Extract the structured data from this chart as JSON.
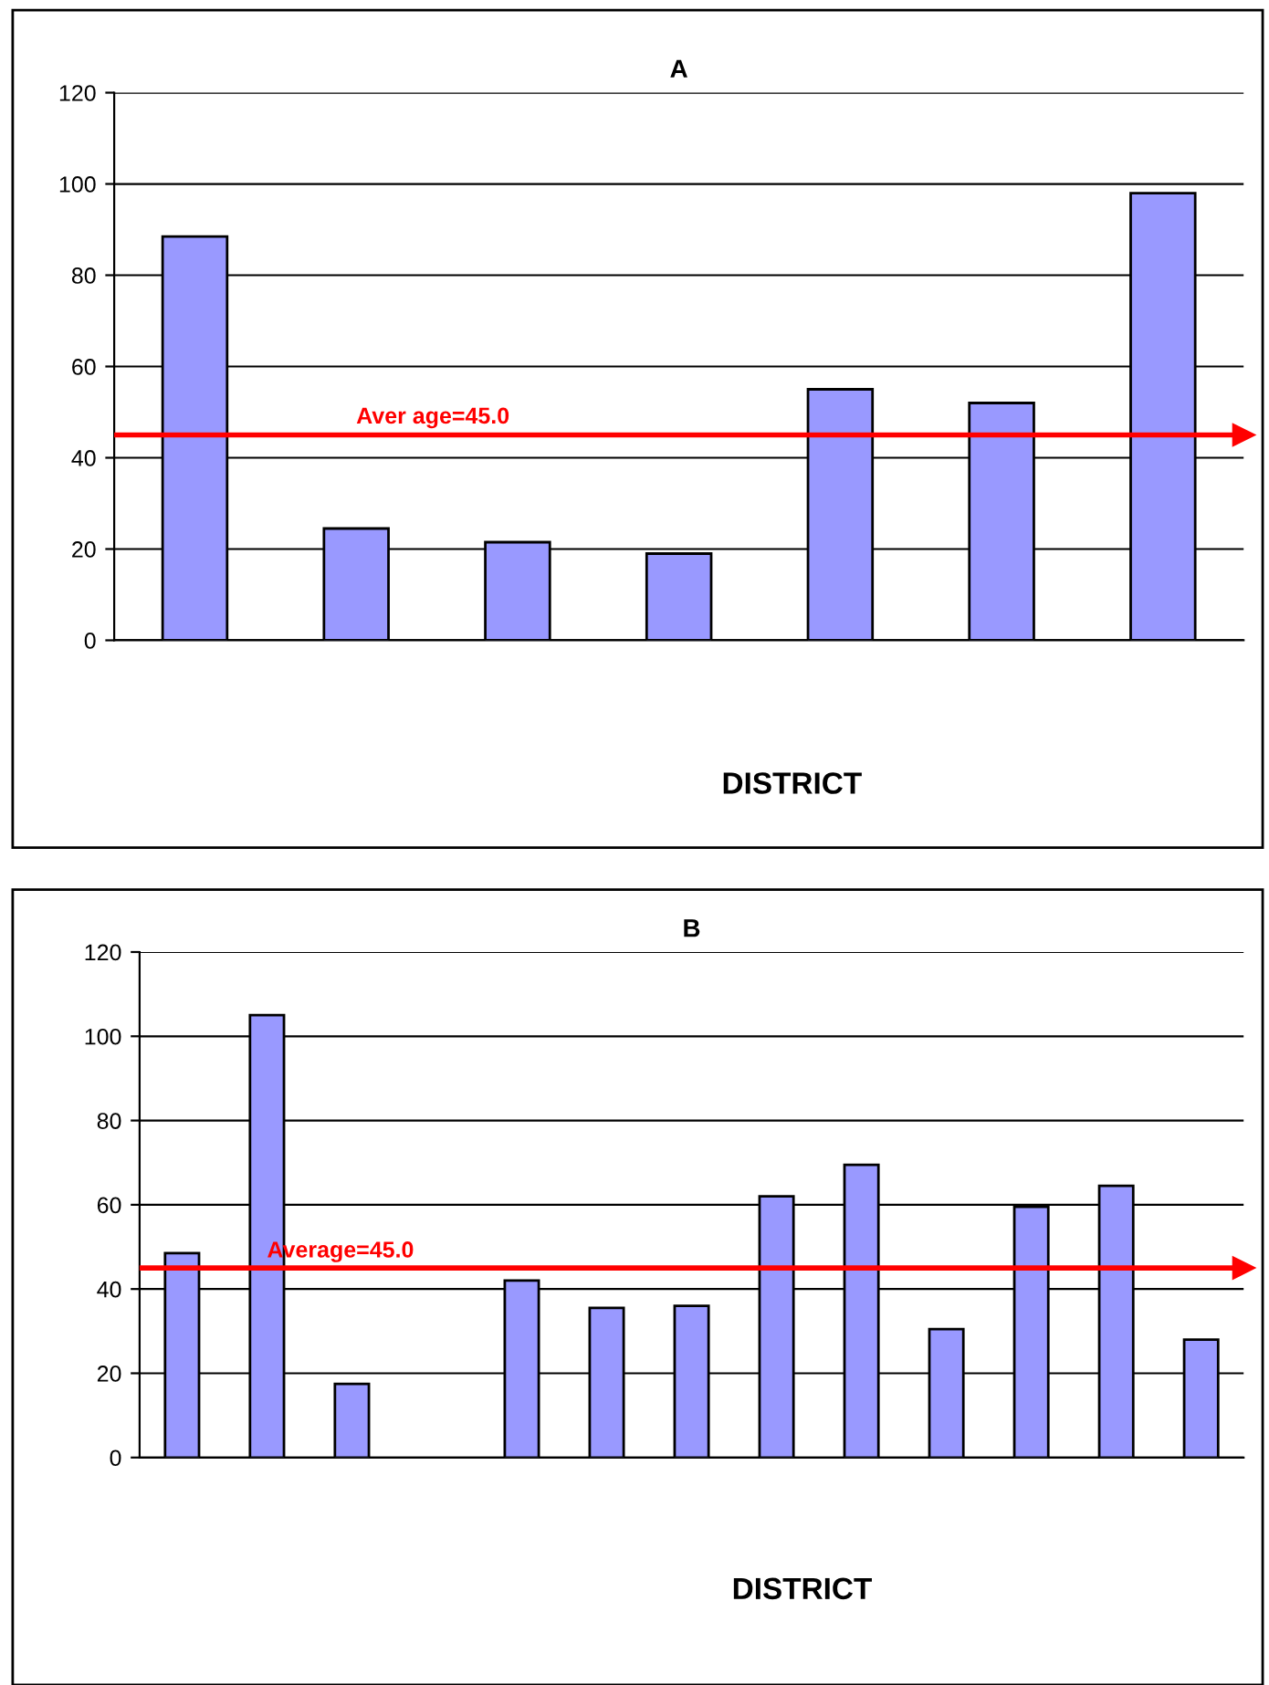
{
  "chart_data": [
    {
      "type": "bar",
      "title": "A",
      "xlabel": "DISTRICT",
      "categories": [
        null,
        null,
        null,
        null,
        null,
        null,
        null
      ],
      "series": [
        {
          "color": "#9999ff",
          "values": [
            88.5,
            24.5,
            21.5,
            19,
            55,
            52,
            98
          ]
        }
      ],
      "ylim": [
        0,
        120
      ],
      "yticks": [
        0,
        20,
        40,
        60,
        80,
        100,
        120
      ],
      "grid": "y",
      "ref_lines": [
        {
          "axis": "y",
          "value": 45,
          "label": "Aver age=45.0",
          "color": "#ff0000"
        }
      ]
    },
    {
      "type": "bar",
      "title": "B",
      "xlabel": "DISTRICT",
      "categories": [
        null,
        null,
        null,
        null,
        null,
        null,
        null,
        null,
        null,
        null,
        null,
        null,
        null
      ],
      "series": [
        {
          "color": "#9999ff",
          "values": [
            48.5,
            105,
            17.5,
            null,
            42,
            35.5,
            36,
            62,
            69.5,
            30.5,
            59.5,
            64.5,
            28
          ]
        }
      ],
      "ylim": [
        0,
        120
      ],
      "yticks": [
        0,
        20,
        40,
        60,
        80,
        100,
        120
      ],
      "grid": "y",
      "ref_lines": [
        {
          "axis": "y",
          "value": 45,
          "label": "Average=45.0",
          "color": "#ff0000"
        }
      ]
    }
  ]
}
